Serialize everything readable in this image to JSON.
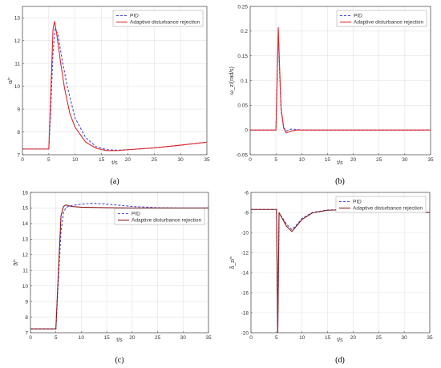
{
  "chart_data": [
    {
      "type": "line",
      "caption": "(a)",
      "xlabel": "t/s",
      "ylabel": "α/°",
      "xlim": [
        0,
        35
      ],
      "ylim": [
        7,
        13.5
      ],
      "xticks": [
        0,
        5,
        10,
        15,
        20,
        25,
        30,
        35
      ],
      "yticks": [
        7,
        8,
        9,
        10,
        11,
        12,
        13
      ],
      "grid": true,
      "legend_position": "top-right",
      "series": [
        {
          "name": "PID",
          "color": "#4a4ad8",
          "dash": "dashed",
          "x": [
            0,
            5,
            5.3,
            5.8,
            6.2,
            6.7,
            7.5,
            8.5,
            10,
            12,
            14,
            16,
            18,
            20,
            25,
            30,
            35
          ],
          "y": [
            7.25,
            7.25,
            8.6,
            11.5,
            12.5,
            12.3,
            11.2,
            10.0,
            8.6,
            7.75,
            7.35,
            7.22,
            7.2,
            7.22,
            7.3,
            7.42,
            7.55
          ]
        },
        {
          "name": "Adaptive disturbance rejection",
          "color": "#e02828",
          "dash": "solid",
          "x": [
            0,
            5,
            5.3,
            5.8,
            6.1,
            6.5,
            7.2,
            8,
            9,
            10,
            12,
            14,
            16,
            18,
            20,
            25,
            30,
            35
          ],
          "y": [
            7.25,
            7.25,
            9.2,
            12.5,
            12.85,
            12.3,
            11.1,
            9.9,
            8.8,
            8.2,
            7.55,
            7.28,
            7.18,
            7.18,
            7.22,
            7.3,
            7.42,
            7.55
          ]
        }
      ]
    },
    {
      "type": "line",
      "caption": "(b)",
      "xlabel": "t/s",
      "ylabel": "ω_z/(rad/s)",
      "xlim": [
        0,
        35
      ],
      "ylim": [
        -0.05,
        0.25
      ],
      "xticks": [
        0,
        5,
        10,
        15,
        20,
        25,
        30,
        35
      ],
      "yticks": [
        -0.05,
        0,
        0.05,
        0.1,
        0.15,
        0.2,
        0.25
      ],
      "grid": true,
      "legend_position": "top-right",
      "series": [
        {
          "name": "PID",
          "color": "#4a4ad8",
          "dash": "dashed",
          "x": [
            0,
            5,
            5.2,
            5.45,
            5.7,
            6.0,
            6.5,
            7.0,
            8,
            9,
            10,
            35
          ],
          "y": [
            0,
            0,
            0.08,
            0.195,
            0.12,
            0.04,
            0.005,
            -0.002,
            0.002,
            0.001,
            0,
            0
          ]
        },
        {
          "name": "Adaptive disturbance rejection",
          "color": "#e02828",
          "dash": "solid",
          "x": [
            0,
            5,
            5.2,
            5.45,
            5.7,
            6.0,
            6.5,
            7.0,
            8,
            9,
            10,
            35
          ],
          "y": [
            0,
            0,
            0.09,
            0.208,
            0.13,
            0.045,
            0.004,
            -0.006,
            -0.002,
            0,
            0,
            0
          ]
        }
      ]
    },
    {
      "type": "line",
      "caption": "(c)",
      "xlabel": "t/s",
      "ylabel": "ϑ/°",
      "xlim": [
        0,
        35
      ],
      "ylim": [
        7,
        16
      ],
      "xticks": [
        0,
        5,
        10,
        15,
        20,
        25,
        30,
        35
      ],
      "yticks": [
        7,
        8,
        9,
        10,
        11,
        12,
        13,
        14,
        15,
        16
      ],
      "grid": true,
      "legend_position": "center-right",
      "series": [
        {
          "name": "PID",
          "color": "#4a4ad8",
          "dash": "dashed",
          "x": [
            0,
            5,
            5.5,
            6,
            6.5,
            7,
            8,
            10,
            12,
            14,
            16,
            20,
            25,
            30,
            35
          ],
          "y": [
            7.25,
            7.25,
            10.5,
            13.5,
            14.7,
            15.05,
            15.15,
            15.25,
            15.3,
            15.28,
            15.22,
            15.1,
            15.02,
            15.0,
            15.0
          ]
        },
        {
          "name": "Adaptive disturbance rejection",
          "color": "#8b1a1a",
          "dash": "solid",
          "x": [
            0,
            5,
            5.5,
            6,
            6.5,
            7,
            8,
            10,
            15,
            20,
            25,
            30,
            35
          ],
          "y": [
            7.25,
            7.25,
            11.0,
            14.5,
            15.1,
            15.2,
            15.1,
            15.05,
            15.02,
            15.0,
            15.0,
            15.0,
            15.0
          ]
        }
      ]
    },
    {
      "type": "line",
      "caption": "(d)",
      "xlabel": "t/s",
      "ylabel": "δ_z/°",
      "xlim": [
        0,
        35
      ],
      "ylim": [
        -20,
        -6
      ],
      "xticks": [
        0,
        5,
        10,
        15,
        20,
        25,
        30,
        35
      ],
      "yticks": [
        -20,
        -18,
        -16,
        -14,
        -12,
        -10,
        -8,
        -6
      ],
      "grid": true,
      "legend_position": "top-right",
      "series": [
        {
          "name": "PID",
          "color": "#4a4ad8",
          "dash": "dashed",
          "x": [
            0,
            5,
            5.25,
            5.5,
            6,
            7,
            8,
            9,
            10,
            12,
            15,
            20,
            25,
            30,
            35
          ],
          "y": [
            -7.7,
            -7.7,
            -19.8,
            -8.2,
            -8.4,
            -9.2,
            -9.7,
            -9.2,
            -8.6,
            -8.0,
            -7.75,
            -7.7,
            -7.75,
            -7.85,
            -8.0
          ]
        },
        {
          "name": "Adaptive disturbance rejection",
          "color": "#8b1a1a",
          "dash": "solid",
          "x": [
            0,
            5,
            5.25,
            5.5,
            6,
            7,
            8,
            9,
            10,
            12,
            15,
            20,
            25,
            30,
            35
          ],
          "y": [
            -7.7,
            -7.7,
            -20.0,
            -8.0,
            -8.5,
            -9.4,
            -9.9,
            -9.3,
            -8.7,
            -8.05,
            -7.78,
            -7.72,
            -7.78,
            -7.88,
            -8.0
          ]
        }
      ]
    }
  ]
}
